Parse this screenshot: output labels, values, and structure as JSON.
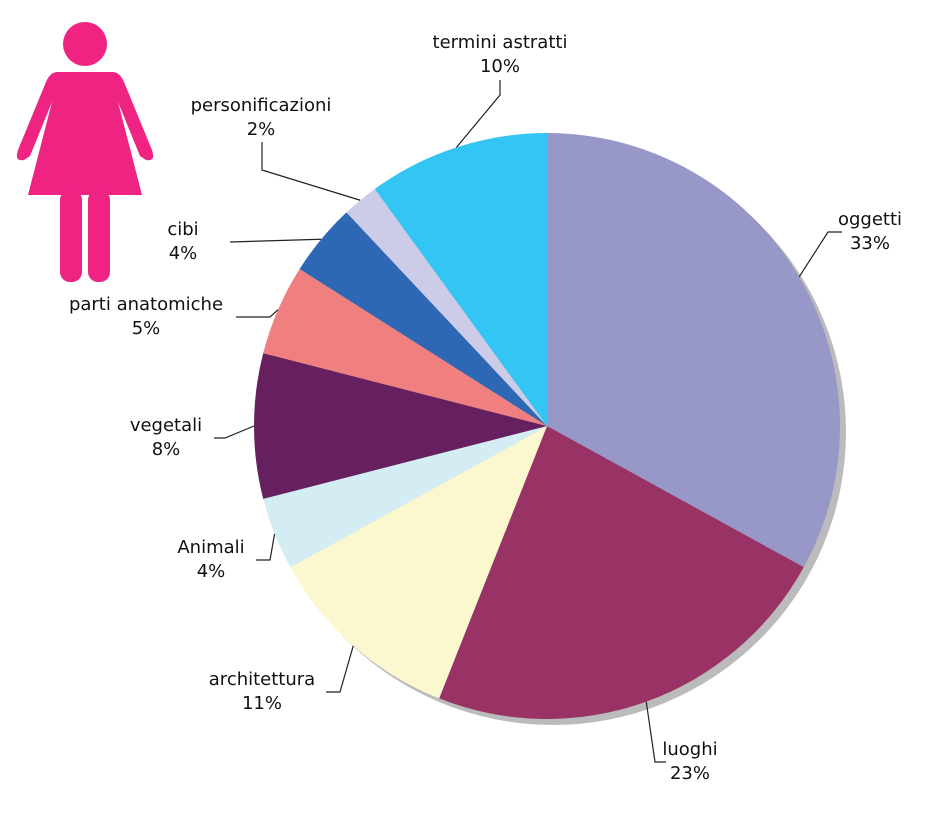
{
  "chart_data": {
    "type": "pie",
    "categories": [
      "oggetti",
      "luoghi",
      "architettura",
      "Animali",
      "vegetali",
      "parti anatomiche",
      "cibi",
      "personificazioni",
      "termini astratti"
    ],
    "values": [
      33,
      23,
      11,
      4,
      8,
      5,
      4,
      2,
      10
    ],
    "value_labels": [
      "33%",
      "23%",
      "11%",
      "4%",
      "8%",
      "5%",
      "4%",
      "2%",
      "10%"
    ],
    "colors": [
      "#9898c8",
      "#993366",
      "#fbf8cf",
      "#d4ecf4",
      "#662060",
      "#f08080",
      "#2e68b4",
      "#cccce8",
      "#33c5f3"
    ]
  }
}
